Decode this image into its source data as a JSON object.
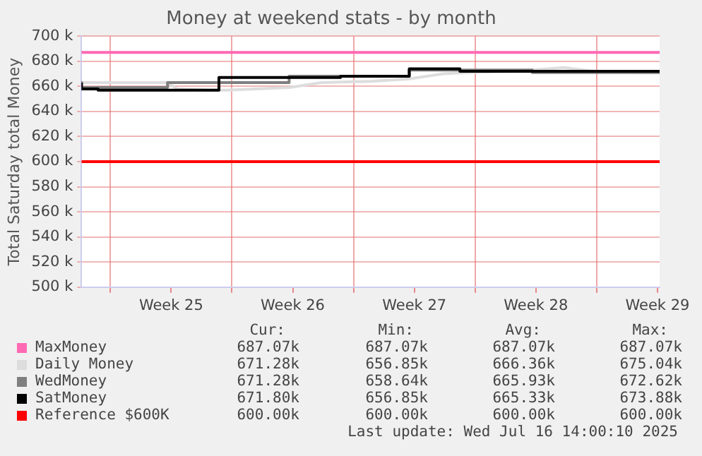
{
  "chart_data": {
    "type": "line",
    "title": "Money at weekend stats - by month",
    "ylabel": "Total Saturday total Money",
    "xlim": [
      "2025-06-14T08:00",
      "2025-07-17T15:00"
    ],
    "xticks": [
      {
        "value": "2025-06-16",
        "label": null
      },
      {
        "value": "2025-06-19T12:00",
        "label": "Week 25"
      },
      {
        "value": "2025-06-23",
        "label": null
      },
      {
        "value": "2025-06-26T12:00",
        "label": "Week 26"
      },
      {
        "value": "2025-06-30",
        "label": null
      },
      {
        "value": "2025-07-03T12:00",
        "label": "Week 27"
      },
      {
        "value": "2025-07-07",
        "label": null
      },
      {
        "value": "2025-07-10T12:00",
        "label": "Week 28"
      },
      {
        "value": "2025-07-14",
        "label": null
      },
      {
        "value": "2025-07-17T12:00",
        "label": "Week 29"
      }
    ],
    "ylim": [
      500000,
      700000
    ],
    "yticks": [
      {
        "value": 500000,
        "label": "500 k"
      },
      {
        "value": 520000,
        "label": "520 k"
      },
      {
        "value": 540000,
        "label": "540 k"
      },
      {
        "value": 560000,
        "label": "560 k"
      },
      {
        "value": 580000,
        "label": "580 k"
      },
      {
        "value": 600000,
        "label": "600 k"
      },
      {
        "value": 620000,
        "label": "620 k"
      },
      {
        "value": 640000,
        "label": "640 k"
      },
      {
        "value": 660000,
        "label": "660 k"
      },
      {
        "value": 680000,
        "label": "680 k"
      },
      {
        "value": 700000,
        "label": "700 k"
      }
    ],
    "grid": true,
    "legend": "bottom",
    "marker": "none",
    "series": [
      {
        "name": "MaxMoney",
        "color": "#ff69b4",
        "x": [
          "2025-06-14T08:00",
          "2025-07-17T15:00"
        ],
        "values": [
          687000,
          687000
        ]
      },
      {
        "name": "Daily Money",
        "color": "#dddddd",
        "x": [
          "2025-06-14T08:00",
          "2025-06-19T07:00",
          "2025-06-19T20:00",
          "2025-06-21T19:00",
          "2025-06-22T16:00",
          "2025-06-26T07:00",
          "2025-06-28T04:00",
          "2025-07-01T00:00",
          "2025-07-03T05:00",
          "2025-07-05T04:00",
          "2025-07-06T12:00",
          "2025-07-09T07:00",
          "2025-07-12T03:00",
          "2025-07-13T19:00",
          "2025-07-17T15:00"
        ],
        "values": [
          663000,
          663000,
          658000,
          657000,
          657000,
          659000,
          663000,
          664000,
          666000,
          670000,
          671000,
          672000,
          675000,
          672000,
          671000
        ]
      },
      {
        "name": "WedMoney",
        "color": "#7f7f7f",
        "type": "step",
        "x": [
          "2025-06-14T08:00",
          "2025-06-19T07:00",
          "2025-06-26T07:00",
          "2025-07-03T05:00",
          "2025-07-10T07:00",
          "2025-07-13T09:00",
          "2025-07-17T15:00"
        ],
        "values": [
          664000,
          659000,
          663000,
          668000,
          673000,
          671000,
          671000
        ]
      },
      {
        "name": "SatMoney",
        "color": "#000000",
        "type": "step",
        "x": [
          "2025-06-14T08:00",
          "2025-06-15T07:00",
          "2025-06-22T06:00",
          "2025-06-29T06:00",
          "2025-07-03T05:00",
          "2025-07-06T03:00",
          "2025-07-13T09:00",
          "2025-07-17T15:00"
        ],
        "values": [
          663000,
          658000,
          657000,
          667000,
          668000,
          674000,
          672000,
          672000
        ]
      },
      {
        "name": "Reference $600K",
        "color": "#ff0000",
        "x": [
          "2025-06-14T08:00",
          "2025-07-17T15:00"
        ],
        "values": [
          600000,
          600000
        ]
      }
    ],
    "annotations": [
      "Cur:",
      "Min:",
      "Avg:",
      "Max:",
      "687.07k",
      "687.07k",
      "687.07k",
      "687.07k",
      "671.28k",
      "656.85k",
      "666.36k",
      "675.04k",
      "671.28k",
      "658.64k",
      "665.93k",
      "672.62k",
      "671.80k",
      "656.85k",
      "665.33k",
      "673.88k",
      "600.00k",
      "600.00k",
      "600.00k",
      "600.00k",
      "Last update: Wed Jul 16 14:00:10 2025"
    ]
  }
}
